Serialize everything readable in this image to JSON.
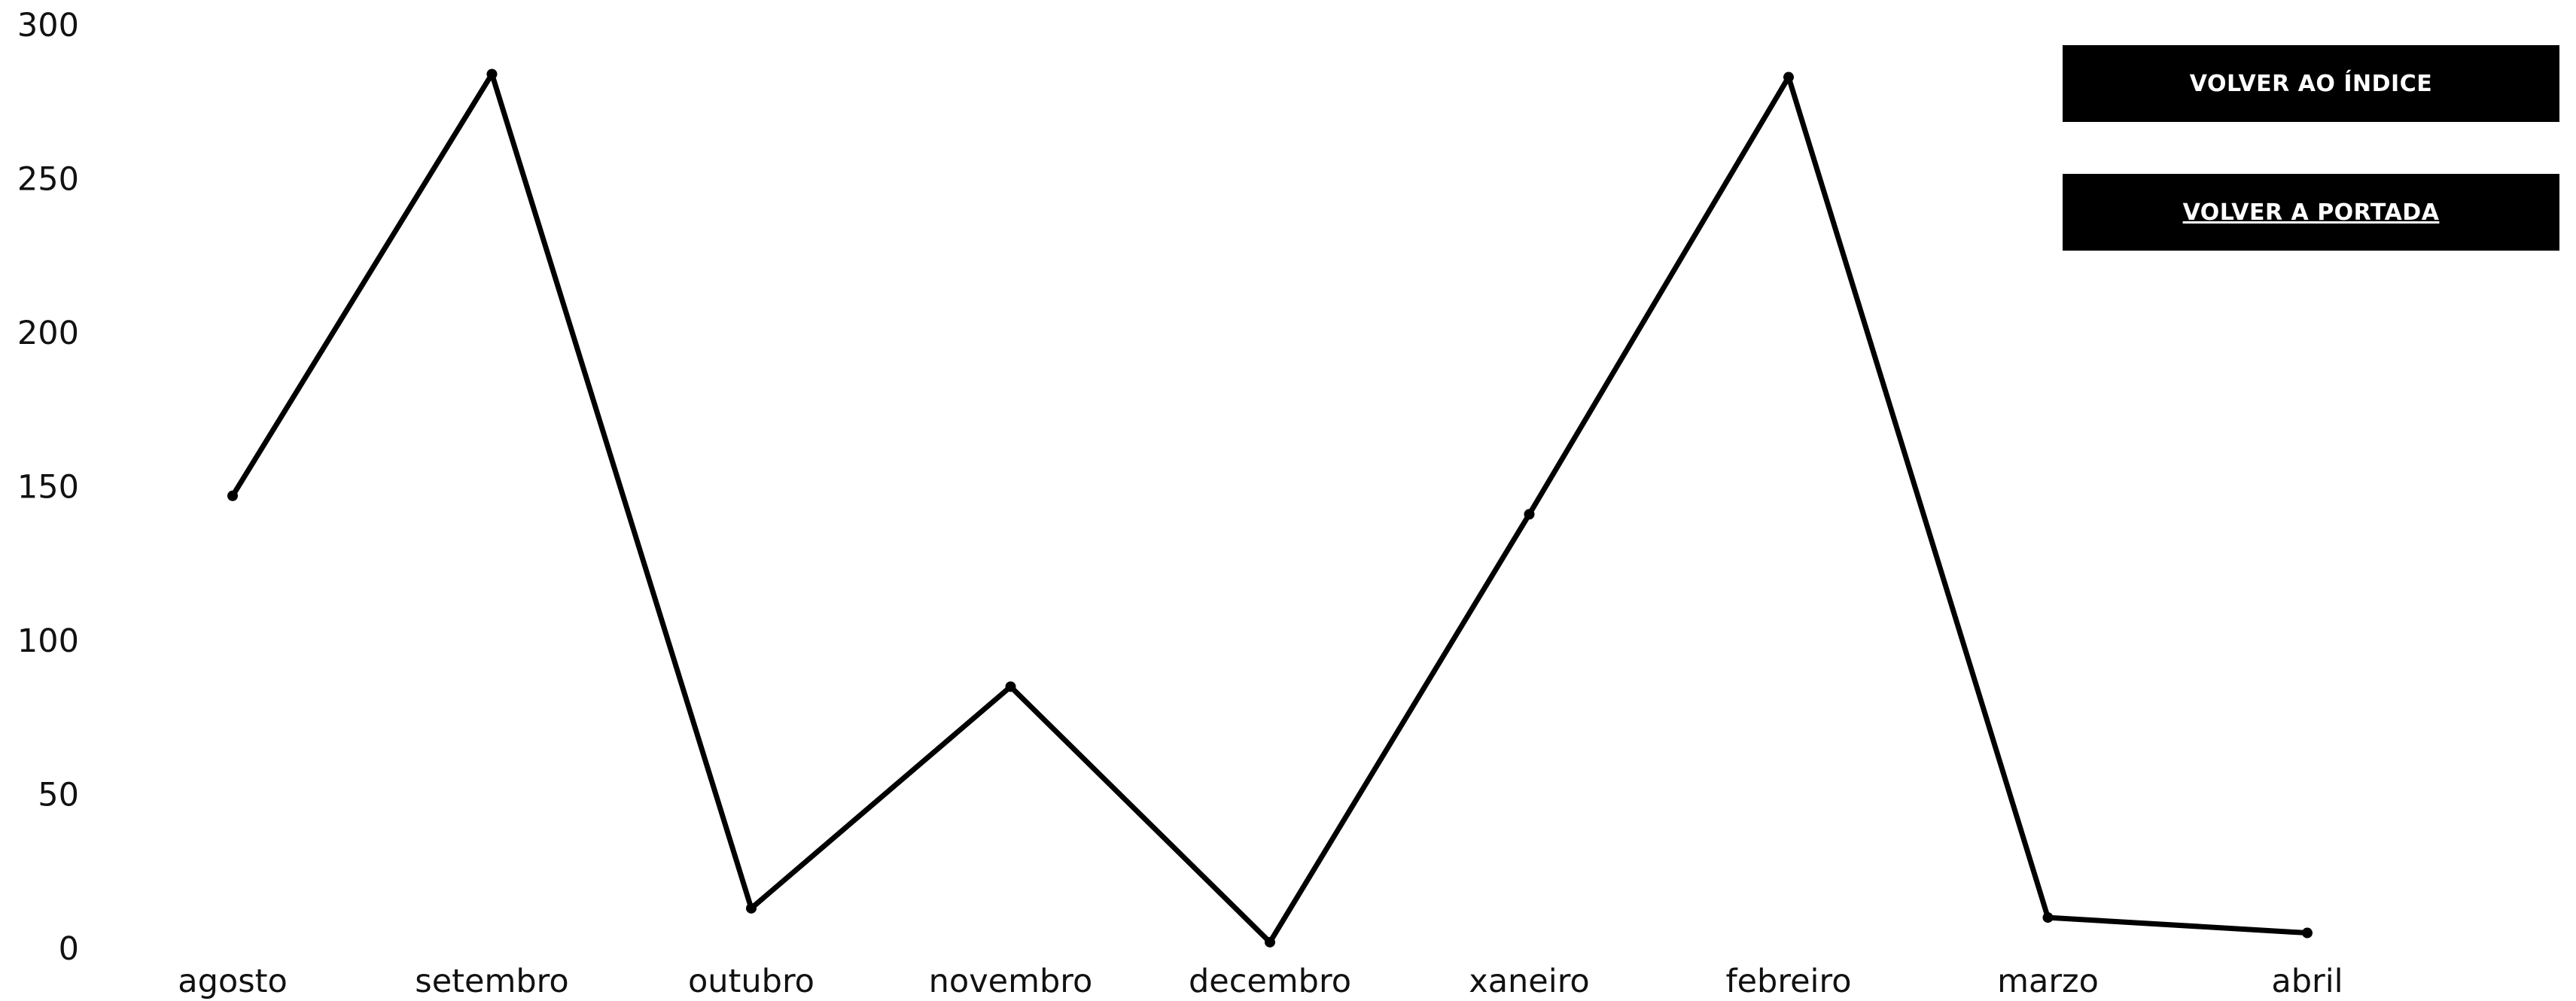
{
  "buttons": {
    "index_label": "VOLVER AO ÍNDICE",
    "cover_label": "VOLVER A PORTADA"
  },
  "chart_data": {
    "type": "line",
    "title": "",
    "xlabel": "",
    "ylabel": "",
    "categories": [
      "agosto",
      "setembro",
      "outubro",
      "novembro",
      "decembro",
      "xaneiro",
      "febreiro",
      "marzo",
      "abril"
    ],
    "series": [
      {
        "values": [
          147,
          284,
          13,
          85,
          2,
          141,
          283,
          10,
          5
        ]
      }
    ],
    "ylim": [
      0,
      300
    ],
    "yticks": [
      0,
      50,
      100,
      150,
      200,
      250,
      300
    ],
    "grid": false,
    "legend": "none",
    "line_color": "#000000"
  }
}
